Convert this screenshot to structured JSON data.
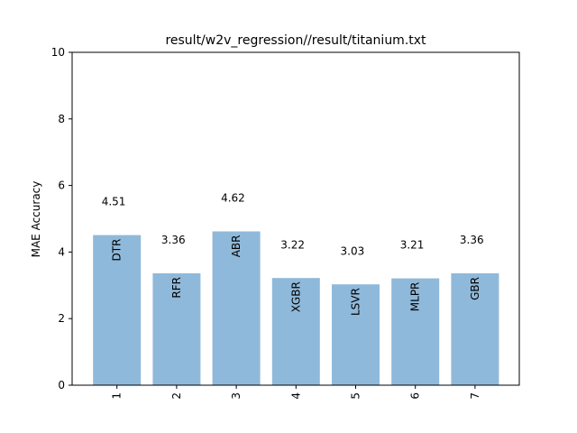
{
  "chart_data": {
    "type": "bar",
    "title": "result/w2v_regression//result/titanium.txt",
    "xlabel": "",
    "ylabel": "MAE Accuracy",
    "ylim": [
      0,
      10
    ],
    "yticks": [
      "0",
      "2",
      "4",
      "6",
      "8",
      "10"
    ],
    "categories": [
      "1",
      "2",
      "3",
      "4",
      "5",
      "6",
      "7"
    ],
    "bar_labels": [
      "DTR",
      "RFR",
      "ABR",
      "XGBR",
      "LSVR",
      "MLPR",
      "GBR"
    ],
    "values": [
      4.51,
      3.36,
      4.62,
      3.22,
      3.03,
      3.21,
      3.36
    ],
    "value_labels": [
      "4.51",
      "3.36",
      "4.62",
      "3.22",
      "3.03",
      "3.21",
      "3.36"
    ],
    "value_label_offsets": [
      1.0,
      1.0,
      1.0,
      1.0,
      1.0,
      1.0,
      1.0
    ],
    "grid": false,
    "bar_color": "#8fb9da"
  }
}
